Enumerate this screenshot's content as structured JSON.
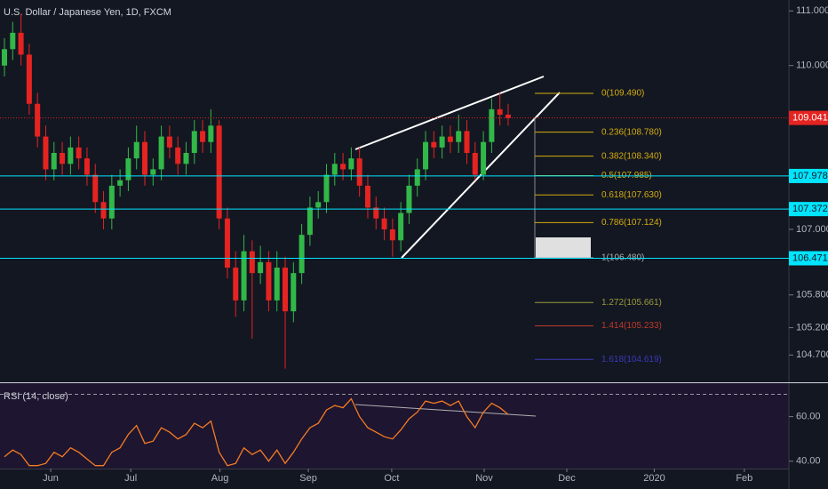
{
  "chart_data": [
    {
      "type": "candlestick",
      "title": "U.S. Dollar / Japanese Yen, 1D, FXCM",
      "up_color": "#32b848",
      "down_color": "#e52421",
      "open": [
        110.0,
        110.3,
        110.6,
        110.2,
        109.3,
        108.7,
        108.1,
        108.4,
        108.2,
        108.5,
        108.3,
        108.0,
        107.5,
        107.2,
        107.8,
        107.9,
        108.3,
        108.6,
        108.0,
        108.1,
        108.7,
        108.5,
        108.2,
        108.4,
        108.8,
        108.6,
        108.9,
        107.2,
        106.3,
        105.7,
        106.6,
        106.2,
        106.4,
        105.7,
        106.3,
        105.5,
        106.2,
        106.9,
        107.4,
        107.5,
        108.0,
        108.2,
        108.1,
        108.3,
        107.8,
        107.4,
        107.2,
        107.0,
        106.8,
        107.3,
        107.8,
        108.1,
        108.6,
        108.5,
        108.7,
        108.6,
        108.8,
        108.4,
        108.0,
        108.6,
        109.2,
        109.1
      ],
      "high": [
        110.5,
        110.8,
        110.95,
        110.4,
        109.5,
        108.9,
        108.6,
        108.6,
        108.7,
        108.7,
        108.5,
        108.2,
        107.7,
        108.0,
        108.1,
        108.5,
        108.9,
        108.8,
        108.3,
        108.9,
        108.9,
        108.7,
        108.6,
        109.0,
        109.0,
        109.2,
        109.0,
        107.4,
        106.6,
        106.9,
        106.8,
        106.7,
        106.6,
        106.6,
        106.5,
        106.4,
        107.1,
        107.6,
        107.7,
        108.2,
        108.4,
        108.4,
        108.5,
        108.5,
        108.0,
        107.6,
        107.4,
        107.2,
        107.5,
        108.0,
        108.3,
        108.8,
        108.8,
        108.9,
        108.9,
        109.1,
        109.0,
        108.6,
        108.8,
        109.4,
        109.5,
        109.3
      ],
      "low": [
        109.8,
        110.1,
        110.0,
        109.1,
        108.5,
        107.9,
        107.9,
        108.0,
        108.0,
        108.1,
        107.8,
        107.3,
        107.0,
        107.0,
        107.6,
        107.7,
        108.1,
        107.8,
        107.8,
        107.9,
        108.3,
        108.0,
        108.0,
        108.2,
        108.4,
        108.4,
        107.0,
        106.1,
        105.4,
        105.5,
        105.0,
        106.0,
        105.5,
        105.5,
        104.45,
        105.3,
        106.0,
        106.7,
        107.2,
        107.3,
        107.8,
        107.9,
        107.9,
        107.6,
        107.2,
        107.0,
        106.8,
        106.5,
        106.6,
        107.1,
        107.6,
        107.9,
        108.3,
        108.3,
        108.4,
        108.4,
        108.2,
        107.9,
        107.9,
        108.4,
        108.9,
        108.9
      ],
      "close": [
        110.3,
        110.6,
        110.2,
        109.3,
        108.7,
        108.1,
        108.4,
        108.2,
        108.5,
        108.3,
        108.0,
        107.5,
        107.2,
        107.8,
        107.9,
        108.3,
        108.6,
        108.0,
        108.1,
        108.7,
        108.5,
        108.2,
        108.4,
        108.8,
        108.6,
        108.9,
        107.2,
        106.3,
        105.7,
        106.6,
        106.2,
        106.4,
        105.7,
        106.3,
        105.5,
        106.2,
        106.9,
        107.4,
        107.5,
        108.0,
        108.2,
        108.1,
        108.3,
        107.8,
        107.4,
        107.2,
        107.0,
        106.8,
        107.3,
        107.8,
        108.1,
        108.6,
        108.5,
        108.7,
        108.6,
        108.8,
        108.4,
        108.0,
        108.6,
        109.2,
        109.1,
        109.04
      ],
      "ylim": [
        104.2,
        111.2
      ],
      "yticks": [
        {
          "value": 111,
          "label": "111.000"
        },
        {
          "value": 110,
          "label": "110.000"
        },
        {
          "value": 107,
          "label": "107.000"
        },
        {
          "value": 105.8,
          "label": "105.800"
        },
        {
          "value": 105.2,
          "label": "105.200"
        },
        {
          "value": 104.7,
          "label": "104.700"
        }
      ],
      "xlim": [
        0,
        95
      ],
      "xticks": [
        {
          "value": 5.6,
          "label": "Jun"
        },
        {
          "value": 15.3,
          "label": "Jul"
        },
        {
          "value": 26.1,
          "label": "Aug"
        },
        {
          "value": 36.8,
          "label": "Sep"
        },
        {
          "value": 46.9,
          "label": "Oct"
        },
        {
          "value": 58.1,
          "label": "Nov"
        },
        {
          "value": 68.1,
          "label": "Dec"
        },
        {
          "value": 78.7,
          "label": "2020"
        },
        {
          "value": 89.6,
          "label": "Feb"
        }
      ],
      "last_price": {
        "value": 109.041,
        "color": "#e52421"
      },
      "price_lines": [
        107.978,
        107.372,
        106.471
      ],
      "price_line_color": "#00e5ff",
      "fib_levels": [
        {
          "value": 109.49,
          "label": "0(109.490)",
          "color": "#d4ac0d"
        },
        {
          "value": 108.78,
          "label": "0.236(108.780)",
          "color": "#d4ac0d"
        },
        {
          "value": 108.34,
          "label": "0.382(108.340)",
          "color": "#d4ac0d"
        },
        {
          "value": 107.985,
          "label": "0.5(107.985)",
          "color": "#d4ac0d"
        },
        {
          "value": 107.63,
          "label": "0.618(107.630)",
          "color": "#d4ac0d"
        },
        {
          "value": 107.124,
          "label": "0.786(107.124)",
          "color": "#d4ac0d"
        },
        {
          "value": 106.48,
          "label": "1(106.480)",
          "color": "#b0b0b0"
        },
        {
          "value": 105.661,
          "label": "1.272(105.661)",
          "color": "#9a9a3a"
        },
        {
          "value": 105.233,
          "label": "1.414(105.233)",
          "color": "#c0392b"
        },
        {
          "value": 104.619,
          "label": "1.618(104.619)",
          "color": "#3a3ab8"
        }
      ]
    },
    {
      "type": "line",
      "title": "RSI (14, close)",
      "color": "#f57c22",
      "values": [
        42,
        45,
        43,
        38,
        38,
        39,
        44,
        42,
        46,
        44,
        41,
        38,
        38,
        44,
        46,
        52,
        56,
        48,
        49,
        55,
        53,
        50,
        52,
        57,
        55,
        58,
        44,
        38,
        39,
        46,
        43,
        45,
        40,
        45,
        39,
        44,
        50,
        55,
        57,
        63,
        65,
        64,
        68,
        60,
        55,
        53,
        51,
        50,
        54,
        59,
        62,
        67,
        66,
        67,
        65,
        67,
        60,
        55,
        62,
        66,
        64,
        61
      ],
      "ylim": [
        36.7,
        75
      ],
      "yticks": [
        {
          "value": 60,
          "label": "60.00"
        },
        {
          "value": 40,
          "label": "40.00"
        }
      ],
      "levels": [
        70
      ]
    }
  ]
}
